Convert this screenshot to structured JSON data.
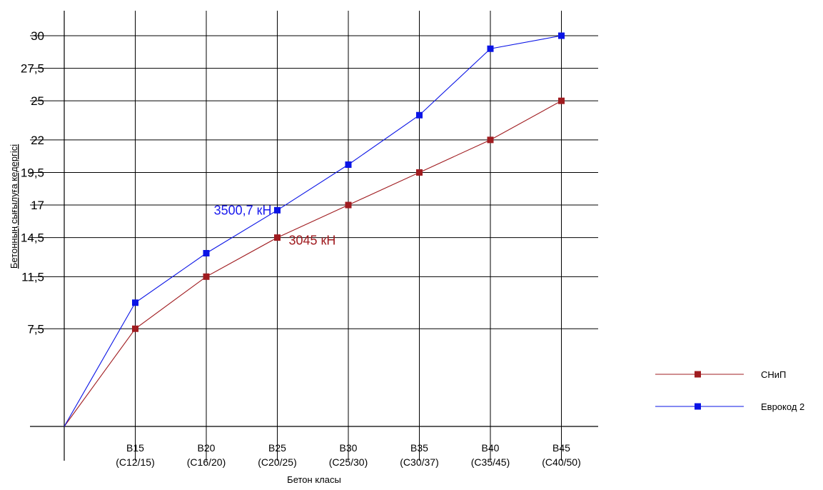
{
  "chart_data": {
    "type": "line",
    "xlabel": "Бетон класы",
    "ylabel": "Бетонның сығылуға кедергісі",
    "categories": [
      {
        "main": "",
        "sub": ""
      },
      {
        "main": "B15",
        "sub": "(C12/15)"
      },
      {
        "main": "B20",
        "sub": "(C16/20)"
      },
      {
        "main": "B25",
        "sub": "(C20/25)"
      },
      {
        "main": "B30",
        "sub": "(C25/30)"
      },
      {
        "main": "B35",
        "sub": "(C30/37)"
      },
      {
        "main": "B40",
        "sub": "(C35/45)"
      },
      {
        "main": "B45",
        "sub": "(C40/50)"
      }
    ],
    "yticks": [
      {
        "label": "7,5",
        "value": 7.5
      },
      {
        "label": "11,5",
        "value": 11.5
      },
      {
        "label": "14,5",
        "value": 14.5
      },
      {
        "label": "17",
        "value": 17
      },
      {
        "label": "19,5",
        "value": 19.5
      },
      {
        "label": "22",
        "value": 22
      },
      {
        "label": "25",
        "value": 25
      },
      {
        "label": "27,5",
        "value": 27.5
      },
      {
        "label": "30",
        "value": 30
      }
    ],
    "ylim": [
      0,
      30
    ],
    "grid": true,
    "legend_position": "right",
    "series": [
      {
        "name": "СНиП",
        "color": "#a01c20",
        "values": [
          0,
          7.5,
          11.5,
          14.5,
          17,
          19.5,
          22,
          25
        ]
      },
      {
        "name": "Еврокод 2",
        "color": "#0a14e6",
        "values": [
          0,
          9.5,
          13.3,
          16.6,
          20.1,
          23.9,
          29.0,
          30.0
        ]
      }
    ],
    "annotations": [
      {
        "text": "3500,7 кН",
        "series": 1,
        "index": 3,
        "color": "#1a1aee"
      },
      {
        "text": "3045 кН",
        "series": 0,
        "index": 3,
        "color": "#a01c20"
      }
    ]
  }
}
